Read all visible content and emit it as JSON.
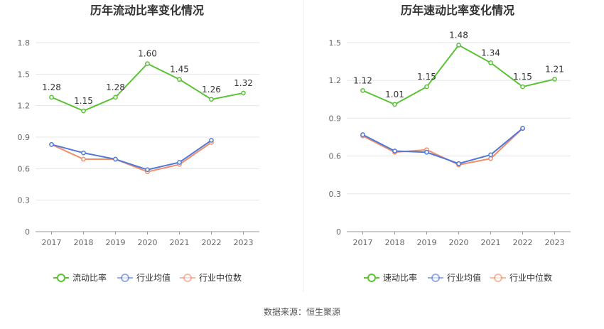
{
  "chart_data": [
    {
      "type": "line",
      "title": "历年流动比率变化情况",
      "categories": [
        "2017",
        "2018",
        "2019",
        "2020",
        "2021",
        "2022",
        "2023"
      ],
      "y_ticks": [
        "0",
        "0.3",
        "0.6",
        "0.9",
        "1.2",
        "1.5",
        "1.8"
      ],
      "ylim": [
        0,
        1.8
      ],
      "series": [
        {
          "name": "流动比率",
          "color": "#5bc236",
          "values": [
            1.28,
            1.15,
            1.28,
            1.6,
            1.45,
            1.26,
            1.32
          ],
          "labels": [
            "1.28",
            "1.15",
            "1.28",
            "1.60",
            "1.45",
            "1.26",
            "1.32"
          ]
        },
        {
          "name": "行业均值",
          "color": "#4f79d6",
          "values": [
            0.83,
            0.75,
            0.69,
            0.59,
            0.66,
            0.87,
            null
          ]
        },
        {
          "name": "行业中位数",
          "color": "#f08e6c",
          "values": [
            0.83,
            0.69,
            0.69,
            0.57,
            0.64,
            0.85,
            null
          ]
        }
      ],
      "grid": true,
      "legend": "bottom"
    },
    {
      "type": "line",
      "title": "历年速动比率变化情况",
      "categories": [
        "2017",
        "2018",
        "2019",
        "2020",
        "2021",
        "2022",
        "2023"
      ],
      "y_ticks": [
        "0",
        "0.3",
        "0.6",
        "0.9",
        "1.2",
        "1.5"
      ],
      "ylim": [
        0,
        1.5
      ],
      "series": [
        {
          "name": "速动比率",
          "color": "#5bc236",
          "values": [
            1.12,
            1.01,
            1.15,
            1.48,
            1.34,
            1.15,
            1.21
          ],
          "labels": [
            "1.12",
            "1.01",
            "1.15",
            "1.48",
            "1.34",
            "1.15",
            "1.21"
          ]
        },
        {
          "name": "行业均值",
          "color": "#4f79d6",
          "values": [
            0.77,
            0.64,
            0.63,
            0.54,
            0.61,
            0.82,
            null
          ]
        },
        {
          "name": "行业中位数",
          "color": "#f08e6c",
          "values": [
            0.76,
            0.63,
            0.65,
            0.53,
            0.58,
            0.82,
            null
          ]
        }
      ],
      "grid": true,
      "legend": "bottom"
    }
  ],
  "footer": {
    "source": "数据来源：恒生聚源"
  }
}
